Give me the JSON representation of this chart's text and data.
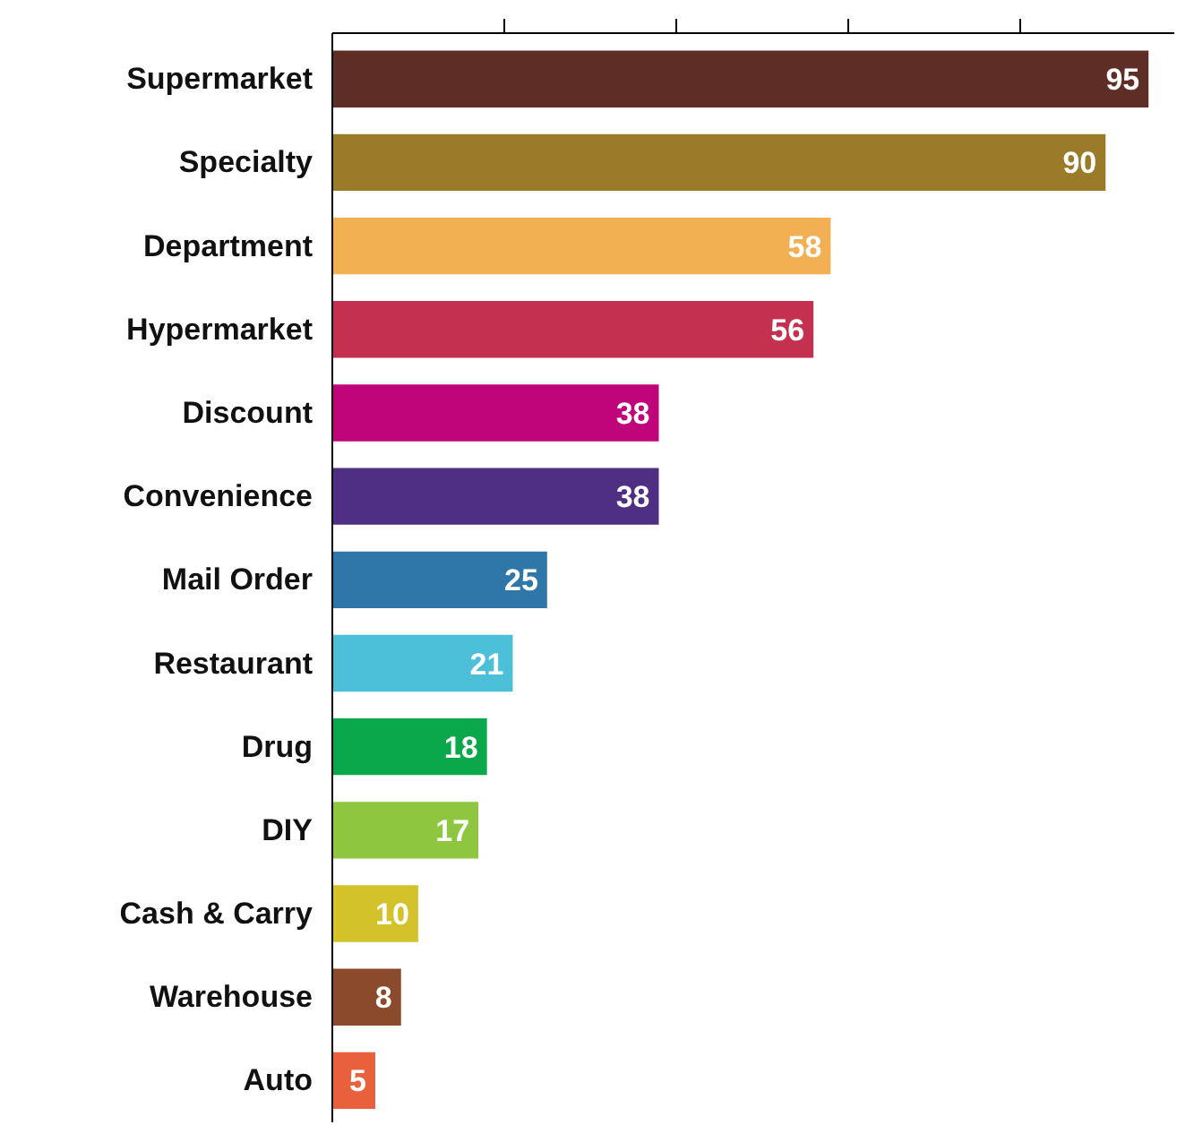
{
  "chart_data": {
    "type": "bar",
    "orientation": "horizontal",
    "categories": [
      "Supermarket",
      "Specialty",
      "Department",
      "Hypermarket",
      "Discount",
      "Convenience",
      "Mail Order",
      "Restaurant",
      "Drug",
      "DIY",
      "Cash & Carry",
      "Warehouse",
      "Auto"
    ],
    "values": [
      95,
      90,
      58,
      56,
      38,
      38,
      25,
      21,
      18,
      17,
      10,
      8,
      5
    ],
    "colors": [
      "#5e2d26",
      "#9a7b2a",
      "#f2b052",
      "#c4304f",
      "#c0057b",
      "#4f2f83",
      "#2e77a8",
      "#4cbfd9",
      "#0aa84b",
      "#8ec63f",
      "#d4c22b",
      "#8b4a2b",
      "#e8603c"
    ],
    "xlim": [
      0,
      98
    ],
    "xticks": [
      {
        "value": 20,
        "label": null
      },
      {
        "value": 40,
        "label": null
      },
      {
        "value": 60,
        "label": null
      },
      {
        "value": 80,
        "label": null
      }
    ],
    "tick_labels": "y",
    "data_labels": true,
    "grid": false
  }
}
